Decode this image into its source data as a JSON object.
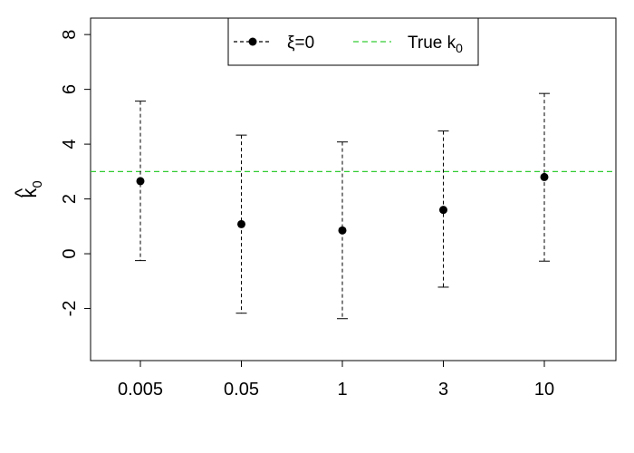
{
  "chart_data": {
    "type": "scatter",
    "title": "",
    "xlabel": "",
    "ylabel": {
      "main": "k",
      "sub": "0",
      "accent": "^"
    },
    "categories": [
      "0.005",
      "0.05",
      "1",
      "3",
      "10"
    ],
    "ylim": [
      -3.9,
      8.6
    ],
    "yticks": [
      "8",
      "6",
      "4",
      "2",
      "0",
      "-2"
    ],
    "ytick_values": [
      8,
      6,
      4,
      2,
      0,
      -2
    ],
    "grid": false,
    "series": [
      {
        "name": "ξ=0",
        "values": [
          2.65,
          1.08,
          0.85,
          1.6,
          2.8
        ],
        "lower": [
          -0.25,
          -2.17,
          -2.37,
          -1.22,
          -0.27
        ],
        "upper": [
          5.57,
          4.33,
          4.08,
          4.48,
          5.85
        ],
        "color": "#000000"
      }
    ],
    "reference_line": {
      "name": "True k",
      "name_sub": "0",
      "value": 3.0,
      "color": "#33cc33"
    },
    "legend_position": "top"
  }
}
